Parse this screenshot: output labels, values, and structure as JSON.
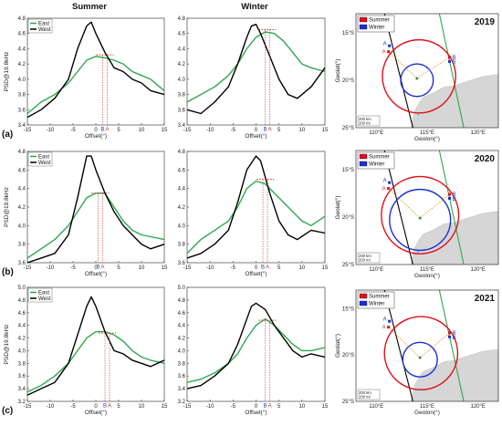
{
  "figure": {
    "column_titles": [
      "Summer",
      "Winter"
    ],
    "ylabel": "PSD@19.8kHz",
    "xlabel": "Offset(°)",
    "legend": [
      "East",
      "West"
    ],
    "panel_labels": [
      "(a)",
      "(b)",
      "(c)"
    ],
    "marker_labels": [
      "B",
      "A"
    ],
    "colors": {
      "east": "#2fa84f",
      "west": "#000000",
      "guide": "#c0392b"
    }
  },
  "chart_data": [
    {
      "type": "line",
      "panel": "(a) Summer",
      "xlim": [
        -15,
        15
      ],
      "ylim": [
        3.4,
        4.8
      ],
      "xticks": [
        -15,
        -10,
        -5,
        0,
        5,
        10,
        15
      ],
      "yticks": [
        3.4,
        3.6,
        3.8,
        4.0,
        4.2,
        4.4,
        4.6,
        4.8
      ],
      "series": [
        {
          "name": "East",
          "x": [
            -15,
            -12,
            -9,
            -6,
            -4,
            -2,
            0,
            2,
            4,
            6,
            8,
            10,
            12,
            15
          ],
          "values": [
            3.55,
            3.7,
            3.8,
            3.95,
            4.1,
            4.25,
            4.3,
            4.28,
            4.25,
            4.2,
            4.1,
            4.05,
            4.0,
            3.85
          ]
        },
        {
          "name": "West",
          "x": [
            -15,
            -12,
            -9,
            -6,
            -4,
            -2,
            -1,
            0,
            2,
            4,
            6,
            8,
            10,
            12,
            15
          ],
          "values": [
            3.5,
            3.6,
            3.75,
            4.0,
            4.4,
            4.7,
            4.75,
            4.6,
            4.35,
            4.15,
            4.1,
            4.0,
            3.95,
            3.85,
            3.8
          ]
        }
      ],
      "markers": {
        "B": 1.5,
        "A": 2.5,
        "level": 4.32
      }
    },
    {
      "type": "line",
      "panel": "(a) Winter",
      "xlim": [
        -15,
        15
      ],
      "ylim": [
        3.4,
        4.8
      ],
      "xticks": [
        -15,
        -10,
        -5,
        0,
        5,
        10,
        15
      ],
      "yticks": [
        3.4,
        3.6,
        3.8,
        4.0,
        4.2,
        4.4,
        4.6,
        4.8
      ],
      "series": [
        {
          "name": "East",
          "x": [
            -15,
            -12,
            -9,
            -6,
            -4,
            -2,
            0,
            2,
            4,
            6,
            8,
            10,
            12,
            15
          ],
          "values": [
            3.7,
            3.8,
            3.9,
            4.05,
            4.2,
            4.4,
            4.55,
            4.62,
            4.6,
            4.5,
            4.35,
            4.2,
            4.15,
            4.1
          ]
        },
        {
          "name": "West",
          "x": [
            -15,
            -12,
            -9,
            -6,
            -4,
            -2,
            -1,
            0,
            1,
            3,
            5,
            7,
            9,
            12,
            15
          ],
          "values": [
            3.6,
            3.55,
            3.7,
            3.9,
            4.2,
            4.55,
            4.7,
            4.72,
            4.6,
            4.3,
            4.0,
            3.8,
            3.75,
            3.9,
            4.15
          ]
        }
      ],
      "markers": {
        "B": 2.0,
        "A": 3.0,
        "level": 4.65
      }
    },
    {
      "type": "line",
      "panel": "(b) Summer",
      "xlim": [
        -15,
        15
      ],
      "ylim": [
        3.6,
        4.8
      ],
      "xticks": [
        -15,
        -10,
        -5,
        0,
        5,
        10,
        15
      ],
      "yticks": [
        3.6,
        3.8,
        4.0,
        4.2,
        4.4,
        4.6,
        4.8
      ],
      "series": [
        {
          "name": "East",
          "x": [
            -15,
            -12,
            -9,
            -6,
            -4,
            -2,
            0,
            2,
            4,
            6,
            8,
            10,
            12,
            15
          ],
          "values": [
            3.65,
            3.75,
            3.85,
            4.0,
            4.15,
            4.3,
            4.35,
            4.35,
            4.2,
            4.05,
            3.95,
            3.9,
            3.88,
            3.85
          ]
        },
        {
          "name": "West",
          "x": [
            -15,
            -12,
            -9,
            -6,
            -4,
            -2,
            -1,
            0,
            2,
            4,
            6,
            8,
            10,
            12,
            15
          ],
          "values": [
            3.6,
            3.65,
            3.7,
            3.9,
            4.3,
            4.75,
            4.75,
            4.6,
            4.35,
            4.15,
            4.0,
            3.9,
            3.8,
            3.75,
            3.8
          ]
        }
      ],
      "markers": {
        "B": 0.5,
        "A": 1.5,
        "level": 4.35
      }
    },
    {
      "type": "line",
      "panel": "(b) Winter",
      "xlim": [
        -15,
        15
      ],
      "ylim": [
        3.6,
        4.8
      ],
      "xticks": [
        -15,
        -10,
        -5,
        0,
        5,
        10,
        15
      ],
      "yticks": [
        3.6,
        3.8,
        4.0,
        4.2,
        4.4,
        4.6,
        4.8
      ],
      "series": [
        {
          "name": "East",
          "x": [
            -15,
            -12,
            -9,
            -6,
            -4,
            -2,
            0,
            2,
            4,
            6,
            8,
            10,
            12,
            15
          ],
          "values": [
            3.7,
            3.85,
            3.95,
            4.05,
            4.2,
            4.4,
            4.48,
            4.45,
            4.35,
            4.25,
            4.15,
            4.05,
            4.0,
            4.1
          ]
        },
        {
          "name": "West",
          "x": [
            -15,
            -12,
            -9,
            -6,
            -4,
            -2,
            0,
            1,
            3,
            5,
            7,
            9,
            12,
            15
          ],
          "values": [
            3.65,
            3.7,
            3.8,
            3.95,
            4.25,
            4.6,
            4.75,
            4.7,
            4.35,
            4.05,
            3.9,
            3.85,
            3.95,
            3.92
          ]
        }
      ],
      "markers": {
        "B": 1.5,
        "A": 2.5,
        "level": 4.5
      }
    },
    {
      "type": "line",
      "panel": "(c) Summer",
      "xlim": [
        -15,
        15
      ],
      "ylim": [
        3.2,
        5.0
      ],
      "xticks": [
        -15,
        -10,
        -5,
        0,
        5,
        10,
        15
      ],
      "yticks": [
        3.2,
        3.4,
        3.6,
        3.8,
        4.0,
        4.2,
        4.4,
        4.6,
        4.8,
        5.0
      ],
      "series": [
        {
          "name": "East",
          "x": [
            -15,
            -12,
            -9,
            -6,
            -4,
            -2,
            0,
            2,
            4,
            6,
            8,
            10,
            12,
            15
          ],
          "values": [
            3.35,
            3.45,
            3.6,
            3.8,
            4.0,
            4.2,
            4.3,
            4.3,
            4.25,
            4.15,
            4.0,
            3.9,
            3.85,
            3.8
          ]
        },
        {
          "name": "West",
          "x": [
            -15,
            -12,
            -9,
            -6,
            -4,
            -2,
            -1,
            0,
            2,
            4,
            6,
            8,
            10,
            12,
            15
          ],
          "values": [
            3.3,
            3.4,
            3.5,
            3.8,
            4.25,
            4.7,
            4.85,
            4.7,
            4.3,
            4.0,
            3.95,
            3.85,
            3.8,
            3.75,
            3.85
          ]
        }
      ],
      "markers": {
        "B": 2.0,
        "A": 3.0,
        "level": 4.28
      }
    },
    {
      "type": "line",
      "panel": "(c) Winter",
      "xlim": [
        -15,
        15
      ],
      "ylim": [
        3.2,
        5.0
      ],
      "xticks": [
        -15,
        -10,
        -5,
        0,
        5,
        10,
        15
      ],
      "yticks": [
        3.2,
        3.4,
        3.6,
        3.8,
        4.0,
        4.2,
        4.4,
        4.6,
        4.8,
        5.0
      ],
      "series": [
        {
          "name": "East",
          "x": [
            -15,
            -12,
            -9,
            -6,
            -4,
            -2,
            0,
            2,
            4,
            6,
            8,
            10,
            12,
            15
          ],
          "values": [
            3.5,
            3.55,
            3.65,
            3.8,
            3.95,
            4.2,
            4.4,
            4.5,
            4.4,
            4.25,
            4.1,
            4.0,
            4.0,
            4.05
          ]
        },
        {
          "name": "West",
          "x": [
            -15,
            -12,
            -9,
            -6,
            -4,
            -2,
            -1,
            0,
            2,
            4,
            6,
            8,
            10,
            12,
            15
          ],
          "values": [
            3.4,
            3.45,
            3.6,
            3.8,
            4.1,
            4.5,
            4.7,
            4.75,
            4.65,
            4.4,
            4.2,
            4.0,
            3.9,
            3.95,
            3.9
          ]
        }
      ],
      "markers": {
        "B": 2.0,
        "A": 3.0,
        "level": 4.48
      }
    }
  ],
  "maps": [
    {
      "year": "2019",
      "legend": [
        "Summer",
        "Winter"
      ],
      "xticks": [
        "110°E",
        "115°E",
        "120°E"
      ],
      "yticks": [
        "15°S",
        "20°S",
        "25°S"
      ],
      "xlabel": "Geolon(°)",
      "ylabel": "Geolat(°)",
      "scale": [
        "200 km",
        "200 mi"
      ],
      "summer_circle": {
        "lon": 114.2,
        "lat": -19.6,
        "r": 3.6
      },
      "winter_circle": {
        "lon": 114.0,
        "lat": -20.0,
        "r": 1.6
      }
    },
    {
      "year": "2020",
      "legend": [
        "Summer",
        "Winter"
      ],
      "xticks": [
        "110°E",
        "115°E",
        "120°E"
      ],
      "yticks": [
        "15°S",
        "20°S",
        "25°S"
      ],
      "xlabel": "Geolon(°)",
      "ylabel": "Geolat(°)",
      "scale": [
        "200 km",
        "200 mi"
      ],
      "summer_circle": {
        "lon": 114.3,
        "lat": -19.8,
        "r": 3.8
      },
      "winter_circle": {
        "lon": 114.3,
        "lat": -20.3,
        "r": 3.0
      }
    },
    {
      "year": "2021",
      "legend": [
        "Summer",
        "Winter"
      ],
      "xticks": [
        "110°E",
        "115°E",
        "120°E"
      ],
      "yticks": [
        "15°S",
        "20°S",
        "25°S"
      ],
      "xlabel": "Geolon(°)",
      "ylabel": "Geolat(°)",
      "scale": [
        "200 km",
        "200 mi"
      ],
      "summer_circle": {
        "lon": 114.4,
        "lat": -19.8,
        "r": 3.6
      },
      "winter_circle": {
        "lon": 114.3,
        "lat": -20.5,
        "r": 1.7
      }
    }
  ]
}
